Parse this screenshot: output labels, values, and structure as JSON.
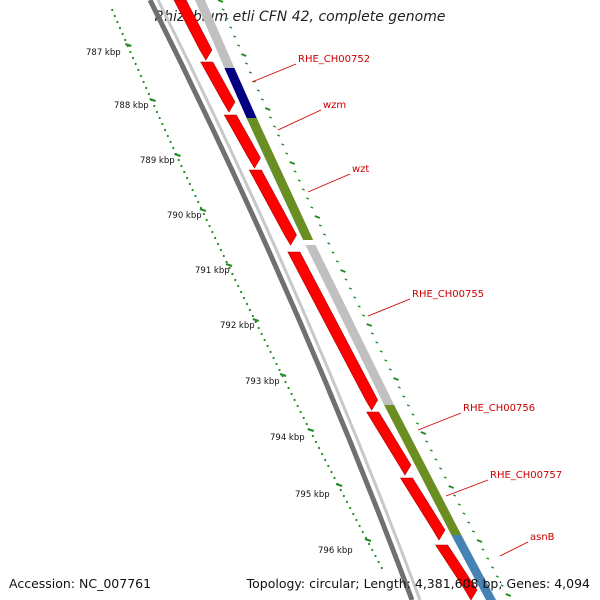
{
  "title": "Rhizobium etli CFN 42, complete genome",
  "accession_label": "Accession: NC_007761",
  "topology_label": "Topology: circular; Length: 4,381,608 bp; Genes: 4,094",
  "ticks": [
    "787 kbp",
    "788 kbp",
    "789 kbp",
    "790 kbp",
    "791 kbp",
    "792 kbp",
    "793 kbp",
    "794 kbp",
    "795 kbp",
    "796 kbp"
  ],
  "genes": [
    {
      "label": "RHE_CH00752",
      "color": "#000080"
    },
    {
      "label": "wzm",
      "color": "#00cccc"
    },
    {
      "label": "wzt",
      "color": "#6b8e23"
    },
    {
      "label": "RHE_CH00755",
      "color": "#c0c0c0"
    },
    {
      "label": "RHE_CH00756",
      "color": "#6b8e23"
    },
    {
      "label": "RHE_CH00757",
      "color": "#6b8e23"
    },
    {
      "label": "asnB",
      "color": "#4682b4"
    }
  ],
  "colors": {
    "cds_red": "#ff0000",
    "backbone": "#808080",
    "tick_green": "#228b22",
    "label_red": "#cc0000"
  }
}
